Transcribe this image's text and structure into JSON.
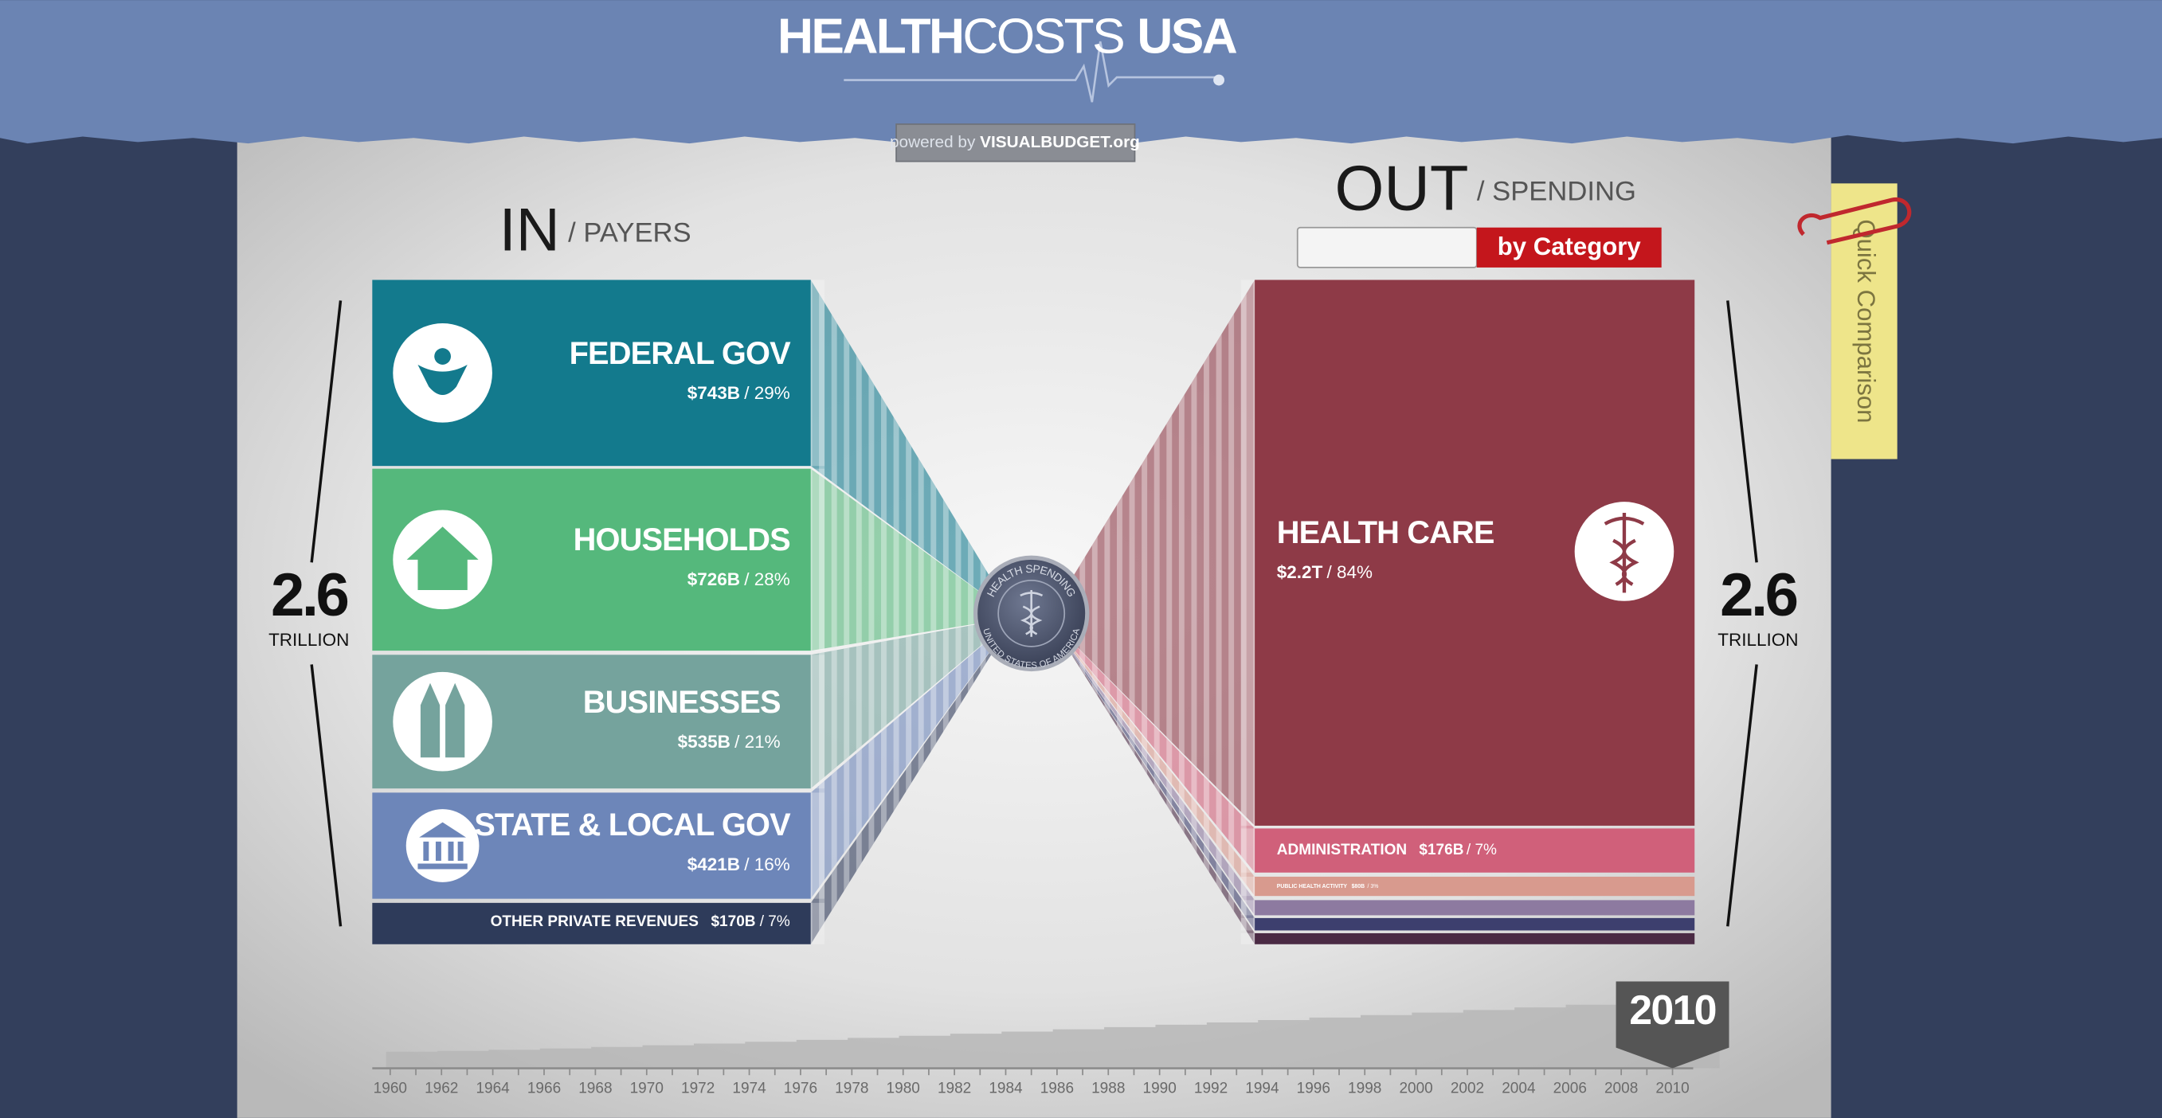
{
  "header": {
    "title_bold": "HEALTH",
    "title_light": "COSTS",
    "title_end": "USA",
    "powered_prefix": "powered by",
    "powered_name": "VISUALBUDGET.org"
  },
  "payers": {
    "heading": "IN",
    "subheading": "/ PAYERS",
    "total": "2.6",
    "total_unit": "TRILLION",
    "items": [
      {
        "name": "FEDERAL GOV",
        "amount": "$743B",
        "share": "/ 29%"
      },
      {
        "name": "HOUSEHOLDS",
        "amount": "$726B",
        "share": "/ 28%"
      },
      {
        "name": "BUSINESSES",
        "amount": "$535B",
        "share": "/ 21%"
      },
      {
        "name": "STATE & LOCAL GOV",
        "amount": "$421B",
        "share": "/ 16%"
      },
      {
        "name": "OTHER PRIVATE REVENUES",
        "amount": "$170B",
        "share": "/ 7%"
      }
    ]
  },
  "spending": {
    "heading": "OUT",
    "subheading": "/ SPENDING",
    "button": "by Category",
    "total": "2.6",
    "total_unit": "TRILLION",
    "items": [
      {
        "name": "HEALTH CARE",
        "amount": "$2.2T",
        "share": "/ 84%"
      },
      {
        "name": "ADMINISTRATION",
        "amount": "$176B",
        "share": "/ 7%"
      },
      {
        "name": "PUBLIC HEALTH ACTIVITY",
        "amount": "$80B",
        "share": "/ 3%"
      }
    ]
  },
  "seal": {
    "top": "HEALTH SPENDING",
    "bottom": "UNITED STATES OF AMERICA"
  },
  "side_tab": "Quick Comparison",
  "timeline": {
    "years": [
      "1960",
      "1962",
      "1964",
      "1966",
      "1968",
      "1970",
      "1972",
      "1974",
      "1976",
      "1978",
      "1980",
      "1982",
      "1984",
      "1986",
      "1988",
      "1990",
      "1992",
      "1994",
      "1996",
      "1998",
      "2000",
      "2002",
      "2004",
      "2006",
      "2008",
      "2010"
    ],
    "selected": "2010"
  }
}
